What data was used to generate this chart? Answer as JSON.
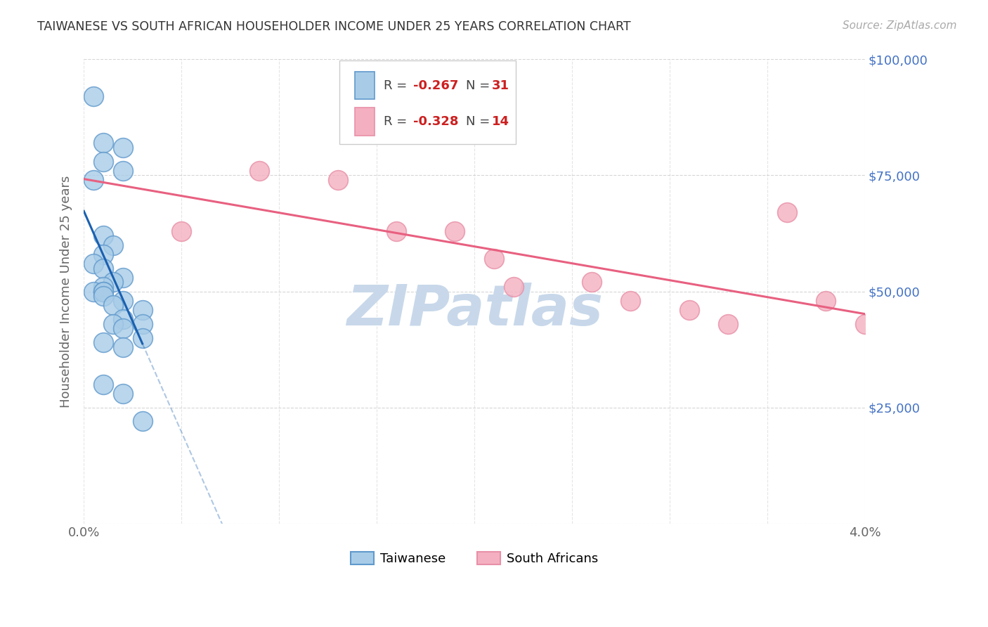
{
  "title": "TAIWANESE VS SOUTH AFRICAN HOUSEHOLDER INCOME UNDER 25 YEARS CORRELATION CHART",
  "source": "Source: ZipAtlas.com",
  "ylabel": "Householder Income Under 25 years",
  "x_min": 0.0,
  "x_max": 0.04,
  "y_min": 0,
  "y_max": 100000,
  "x_ticks": [
    0.0,
    0.005,
    0.01,
    0.015,
    0.02,
    0.025,
    0.03,
    0.035,
    0.04
  ],
  "y_ticks": [
    0,
    25000,
    50000,
    75000,
    100000
  ],
  "taiwanese_x": [
    0.0005,
    0.001,
    0.002,
    0.001,
    0.002,
    0.0005,
    0.001,
    0.0015,
    0.001,
    0.0005,
    0.001,
    0.002,
    0.0015,
    0.001,
    0.0005,
    0.001,
    0.001,
    0.001,
    0.002,
    0.0015,
    0.003,
    0.002,
    0.003,
    0.0015,
    0.002,
    0.003,
    0.001,
    0.002,
    0.001,
    0.002,
    0.003
  ],
  "taiwanese_y": [
    92000,
    82000,
    81000,
    78000,
    76000,
    74000,
    62000,
    60000,
    58000,
    56000,
    55000,
    53000,
    52000,
    51000,
    50000,
    50000,
    50000,
    49000,
    48000,
    47000,
    46000,
    44000,
    43000,
    43000,
    42000,
    40000,
    39000,
    38000,
    30000,
    28000,
    22000
  ],
  "south_african_x": [
    0.005,
    0.009,
    0.013,
    0.016,
    0.019,
    0.021,
    0.022,
    0.026,
    0.028,
    0.031,
    0.033,
    0.036,
    0.038,
    0.04
  ],
  "south_african_y": [
    63000,
    76000,
    74000,
    63000,
    63000,
    57000,
    51000,
    52000,
    48000,
    46000,
    43000,
    67000,
    48000,
    43000
  ],
  "taiwanese_R": -0.267,
  "taiwanese_N": 31,
  "south_african_R": -0.328,
  "south_african_N": 14,
  "blue_color": "#a8cce8",
  "pink_color": "#f4b0c0",
  "blue_line_color": "#1a60b0",
  "pink_line_color": "#e86080",
  "blue_marker_edge": "#6099cc",
  "pink_marker_edge": "#e890a8",
  "title_color": "#333333",
  "right_tick_color": "#4472c4",
  "grid_color": "#cccccc",
  "watermark_color": "#c8d8ea",
  "background_color": "#ffffff"
}
